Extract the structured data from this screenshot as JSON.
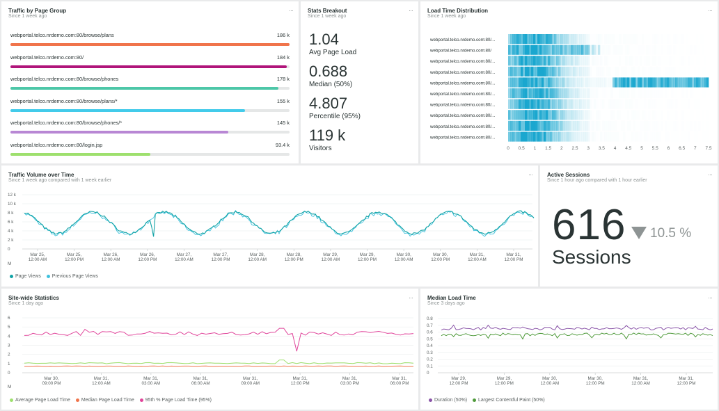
{
  "traffic": {
    "title": "Traffic by Page Group",
    "subtitle": "Since 1 week ago",
    "rows": [
      {
        "label": "webportal.telco.nrdemo.com:80/browse/plans",
        "value": "186 k",
        "fraction": 1.0,
        "color": "#f0744b"
      },
      {
        "label": "webportal.telco.nrdemo.com:80/",
        "value": "184 k",
        "fraction": 0.99,
        "color": "#b0157a"
      },
      {
        "label": "webportal.telco.nrdemo.com:80/browse/phones",
        "value": "178 k",
        "fraction": 0.96,
        "color": "#4dc7a8"
      },
      {
        "label": "webportal.telco.nrdemo.com:80/browse/plans/*",
        "value": "155 k",
        "fraction": 0.84,
        "color": "#43cbea"
      },
      {
        "label": "webportal.telco.nrdemo.com:80/browse/phones/*",
        "value": "145 k",
        "fraction": 0.78,
        "color": "#b887d4"
      },
      {
        "label": "webportal.telco.nrdemo.com:80/login.jsp",
        "value": "93.4 k",
        "fraction": 0.5,
        "color": "#9ee06e"
      }
    ]
  },
  "stats": {
    "title": "Stats Breakout",
    "subtitle": "Since 1 week ago",
    "items": [
      {
        "value": "1.04",
        "label": "Avg Page Load"
      },
      {
        "value": "0.688",
        "label": "Median (50%)"
      },
      {
        "value": "4.807",
        "label": "Percentile (95%)"
      },
      {
        "value": "119 k",
        "label": "Visitors"
      }
    ]
  },
  "load_dist": {
    "title": "Load Time Distribution",
    "subtitle": "Since 1 week ago",
    "rows": [
      "webportal.telco.nrdemo.com:80/...",
      "webportal.telco.nrdemo.com:80/",
      "webportal.telco.nrdemo.com:80/...",
      "webportal.telco.nrdemo.com:80/...",
      "webportal.telco.nrdemo.com:80/...",
      "webportal.telco.nrdemo.com:80/...",
      "webportal.telco.nrdemo.com:80/...",
      "webportal.telco.nrdemo.com:80/...",
      "webportal.telco.nrdemo.com:80/...",
      "webportal.telco.nrdemo.com:80/..."
    ],
    "x_ticks": [
      "0",
      "0.5",
      "1",
      "1.5",
      "2",
      "2.5",
      "3",
      "3.5",
      "4",
      "4.5",
      "5",
      "5.5",
      "6",
      "6.5",
      "7",
      "7.5"
    ],
    "color": "#1aa7cf"
  },
  "volume": {
    "title": "Traffic Volume over Time",
    "subtitle": "Since 1 week ago compared with 1 week earlier",
    "y_ticks": [
      "12 k",
      "10 k",
      "8 k",
      "6 k",
      "4 k",
      "2 k",
      "0"
    ],
    "x_ticks": [
      [
        "Mar 25,",
        "12:00 AM"
      ],
      [
        "Mar 25,",
        "12:00 PM"
      ],
      [
        "Mar 26,",
        "12:00 AM"
      ],
      [
        "Mar 26,",
        "12:00 PM"
      ],
      [
        "Mar 27,",
        "12:00 AM"
      ],
      [
        "Mar 27,",
        "12:00 PM"
      ],
      [
        "Mar 28,",
        "12:00 AM"
      ],
      [
        "Mar 28,",
        "12:00 PM"
      ],
      [
        "Mar 29,",
        "12:00 AM"
      ],
      [
        "Mar 29,",
        "12:00 PM"
      ],
      [
        "Mar 30,",
        "12:00 AM"
      ],
      [
        "Mar 30,",
        "12:00 PM"
      ],
      [
        "Mar 31,",
        "12:00 AM"
      ],
      [
        "Mar 31,",
        "12:00 PM"
      ]
    ],
    "edge_tick": "M",
    "legend": [
      {
        "name": "Page Views",
        "color": "#11a3a6"
      },
      {
        "name": "Previous Page Views",
        "color": "#3fc1dd"
      }
    ]
  },
  "sessions": {
    "title": "Active Sessions",
    "subtitle": "Since 1 hour ago compared with 1 hour earlier",
    "value": "616",
    "change": "10.5 %",
    "label": "Sessions"
  },
  "sitewide": {
    "title": "Site-wide Statistics",
    "subtitle": "Since 1 day ago",
    "y_ticks": [
      "6",
      "5",
      "4",
      "3",
      "2",
      "1",
      "0"
    ],
    "x_ticks": [
      [
        "Mar 30,",
        "09:00 PM"
      ],
      [
        "Mar 31,",
        "12:00 AM"
      ],
      [
        "Mar 31,",
        "03:00 AM"
      ],
      [
        "Mar 31,",
        "06:00 AM"
      ],
      [
        "Mar 31,",
        "09:00 AM"
      ],
      [
        "Mar 31,",
        "12:00 PM"
      ],
      [
        "Mar 31,",
        "03:00 PM"
      ],
      [
        "Mar 31,",
        "06:00 PM"
      ]
    ],
    "edge_tick": "M",
    "legend": [
      {
        "name": "Average Page Load Time",
        "color": "#9ee06e"
      },
      {
        "name": "Median Page Load Time",
        "color": "#f0744b"
      },
      {
        "name": "95th % Page Load Time (95%)",
        "color": "#e0449a"
      }
    ]
  },
  "median": {
    "title": "Median Load Time",
    "subtitle": "Since 3 days ago",
    "y_ticks": [
      "0.8",
      "0.7",
      "0.6",
      "0.5",
      "0.4",
      "0.3",
      "0.2",
      "0.1",
      "0"
    ],
    "x_ticks": [
      [
        "Mar 29,",
        "12:00 PM"
      ],
      [
        "Mar 29,",
        "12:00 PM"
      ],
      [
        "Mar 30,",
        "12:00 AM"
      ],
      [
        "Mar 30,",
        "12:00 PM"
      ],
      [
        "Mar 31,",
        "12:00 AM"
      ],
      [
        "Mar 31,",
        "12:00 PM"
      ]
    ],
    "legend": [
      {
        "name": "Duration (50%)",
        "color": "#8a55a8"
      },
      {
        "name": "Largest Contentful Paint (50%)",
        "color": "#4f9a3b"
      }
    ]
  },
  "menu_glyph": "···"
}
